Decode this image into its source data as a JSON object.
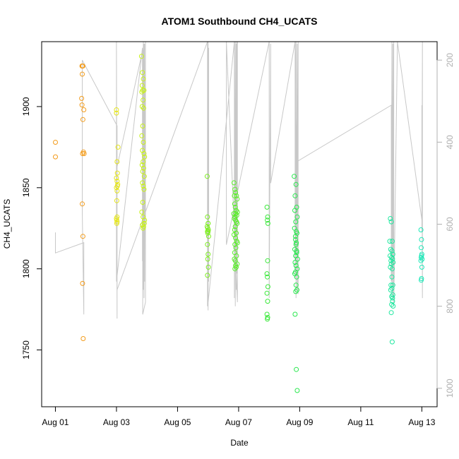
{
  "chart_data": {
    "type": "scatter",
    "title": "ATOM1 Southbound CH4_UCATS",
    "xlabel": "Date",
    "ylabel": "CH4_UCATS",
    "x_unit": "days since Aug 01",
    "x_ticks": [
      {
        "x": 0,
        "label": "Aug 01"
      },
      {
        "x": 2,
        "label": "Aug 03"
      },
      {
        "x": 4,
        "label": "Aug 05"
      },
      {
        "x": 6,
        "label": "Aug 07"
      },
      {
        "x": 8,
        "label": "Aug 09"
      },
      {
        "x": 10,
        "label": "Aug 11"
      },
      {
        "x": 12,
        "label": "Aug 13"
      }
    ],
    "xlim": [
      -0.45,
      12.5
    ],
    "y_ticks": [
      1750,
      1800,
      1850,
      1900
    ],
    "ylim": [
      1715,
      1940
    ],
    "y2_label": "",
    "y2_ticks": [
      200,
      400,
      600,
      800,
      1000
    ],
    "y2lim": [
      1045,
      155
    ],
    "y2_color": "#b0b0b0",
    "grid": false,
    "legend": "none",
    "series": [
      {
        "color": "#f39c1c",
        "x": [
          0.0,
          0.0,
          0.87,
          0.9,
          0.88,
          0.86,
          0.87,
          0.93,
          0.9,
          0.92,
          0.89,
          0.94,
          0.88,
          0.9,
          0.89,
          0.91,
          0.88
        ],
        "y": [
          1878,
          1869,
          1925,
          1925,
          1920,
          1905,
          1901,
          1898,
          1892,
          1872,
          1871,
          1871,
          1840,
          1820,
          1791,
          1757,
          1925
        ]
      },
      {
        "color": "#e6e61a",
        "x": [
          2.0,
          2.0,
          2.05,
          2.02,
          2.03,
          2.0,
          2.02,
          2.04,
          2.03,
          2.0,
          2.02,
          2.01,
          2.02,
          2.0,
          2.01,
          2.02,
          2.01
        ],
        "y": [
          1898,
          1896,
          1875,
          1866,
          1859,
          1856,
          1854,
          1852,
          1851,
          1850,
          1848,
          1842,
          1832,
          1831,
          1830,
          1829,
          1828
        ]
      },
      {
        "color": "#c8f218",
        "x": [
          2.82,
          2.85,
          2.88,
          2.84,
          2.86,
          2.9,
          2.83,
          2.87,
          2.84,
          2.89,
          2.86,
          2.83,
          2.88,
          2.85,
          2.9,
          2.92,
          2.87,
          2.84,
          2.89,
          2.86,
          2.91,
          2.85,
          2.88,
          2.9,
          2.86,
          2.83,
          2.87,
          2.92,
          2.85,
          2.89,
          2.87,
          2.91
        ],
        "y": [
          1931,
          1921,
          1917,
          1913,
          1910,
          1910,
          1909,
          1904,
          1900,
          1899,
          1888,
          1882,
          1878,
          1873,
          1871,
          1869,
          1866,
          1864,
          1862,
          1860,
          1857,
          1853,
          1851,
          1849,
          1841,
          1835,
          1832,
          1830,
          1827,
          1826,
          1825,
          1828
        ]
      },
      {
        "color": "#7fef22",
        "x": [
          4.97,
          4.98,
          5.0,
          4.99,
          5.01,
          4.98,
          5.0,
          4.99,
          5.02,
          4.98,
          5.0,
          4.99,
          5.01,
          4.98,
          5.0,
          4.97
        ],
        "y": [
          1857,
          1832,
          1828,
          1825,
          1824,
          1823,
          1823,
          1822,
          1820,
          1815,
          1809,
          1806,
          1801,
          1796,
          1828,
          1826
        ]
      },
      {
        "color": "#5aef2a",
        "x": [
          5.85,
          5.88,
          5.9,
          5.86,
          5.93,
          5.95,
          5.87,
          5.89,
          5.92,
          5.96,
          5.84,
          5.91,
          5.94,
          5.88,
          5.86,
          5.9,
          5.93,
          5.95,
          5.89,
          5.87,
          5.92,
          5.85,
          5.9,
          5.94,
          5.96,
          5.88,
          5.91,
          5.87,
          5.93,
          5.86,
          5.89,
          5.95,
          5.9,
          5.92,
          5.88
        ],
        "y": [
          1853,
          1849,
          1847,
          1845,
          1845,
          1843,
          1840,
          1838,
          1836,
          1835,
          1834,
          1834,
          1833,
          1832,
          1831,
          1830,
          1829,
          1828,
          1826,
          1824,
          1822,
          1821,
          1819,
          1817,
          1816,
          1815,
          1813,
          1810,
          1808,
          1806,
          1805,
          1803,
          1802,
          1801,
          1800
        ]
      },
      {
        "color": "#3ae83a",
        "x": [
          6.93,
          6.95,
          6.94,
          6.96,
          6.95,
          6.93,
          6.94,
          6.96,
          6.95,
          6.93,
          6.95,
          6.94,
          6.93
        ],
        "y": [
          1838,
          1832,
          1830,
          1828,
          1805,
          1797,
          1795,
          1789,
          1780,
          1772,
          1770,
          1769,
          1785
        ]
      },
      {
        "color": "#29e84e",
        "x": [
          7.82,
          7.88,
          7.85,
          7.9,
          7.84,
          7.92,
          7.87,
          7.83,
          7.91,
          7.86,
          7.89,
          7.84,
          7.9,
          7.87,
          7.93,
          7.85,
          7.88,
          7.92,
          7.86,
          7.84,
          7.9,
          7.88,
          7.91,
          7.87,
          7.85,
          7.89,
          7.92,
          7.86,
          7.88,
          7.9,
          7.87,
          7.89
        ],
        "y": [
          1857,
          1852,
          1845,
          1838,
          1836,
          1832,
          1829,
          1825,
          1822,
          1820,
          1816,
          1812,
          1810,
          1808,
          1806,
          1804,
          1802,
          1800,
          1798,
          1797,
          1795,
          1790,
          1787,
          1786,
          1772,
          1738,
          1725,
          1818,
          1815,
          1811,
          1808,
          1823
        ]
      },
      {
        "color": "#20e8a0",
        "x": [
          10.97,
          11.0,
          10.95,
          11.03,
          10.98,
          11.02,
          11.05,
          10.96,
          11.01,
          11.04,
          10.99,
          11.06,
          11.0,
          10.97,
          11.03,
          11.02,
          11.05,
          10.98,
          11.01,
          11.04,
          11.06,
          11.0,
          11.03,
          10.99,
          11.02,
          11.05,
          11.04,
          11.01
        ],
        "y": [
          1831,
          1829,
          1817,
          1817,
          1812,
          1811,
          1809,
          1808,
          1807,
          1806,
          1805,
          1804,
          1803,
          1801,
          1800,
          1795,
          1790,
          1787,
          1783,
          1780,
          1777,
          1773,
          1755,
          1790,
          1788,
          1784,
          1782,
          1778
        ]
      },
      {
        "color": "#1ce8b8",
        "x": [
          11.97,
          11.99,
          11.98,
          12.0,
          11.99,
          11.98,
          12.01,
          11.97,
          12.0,
          11.99,
          11.98
        ],
        "y": [
          1824,
          1818,
          1813,
          1809,
          1808,
          1807,
          1806,
          1805,
          1801,
          1794,
          1793
        ]
      }
    ],
    "pressure_trace": {
      "color": "#c8c8c8",
      "x": [
        0.0,
        0.0,
        0.93,
        0.93,
        0.88,
        0.88,
        2.02,
        2.02,
        2.0,
        2.0,
        2.85,
        2.85,
        2.88,
        2.88,
        2.9,
        2.9,
        2.92,
        2.92,
        2.95,
        2.95,
        2.86,
        2.86,
        2.02,
        2.02,
        4.98,
        4.98,
        5.0,
        5.0,
        5.02,
        5.02,
        4.99,
        4.99,
        5.86,
        5.86,
        5.89,
        5.89,
        5.92,
        5.92,
        5.94,
        5.94,
        5.96,
        5.96,
        5.6,
        5.6,
        7.0,
        7.0,
        7.05,
        7.05,
        7.85,
        7.85,
        7.88,
        7.88,
        7.92,
        7.92,
        7.95,
        7.95,
        7.85,
        7.85,
        11.0,
        11.0,
        11.02,
        11.02,
        11.05,
        11.05,
        11.08,
        11.08,
        11.2,
        12.0,
        12.0,
        12.02,
        12.02,
        12.0
      ],
      "y": [
        620,
        670,
        645,
        820,
        570,
        200,
        360,
        830,
        150,
        740,
        170,
        690,
        150,
        760,
        160,
        780,
        160,
        740,
        150,
        790,
        820,
        175,
        460,
        760,
        150,
        800,
        150,
        810,
        170,
        740,
        190,
        800,
        150,
        780,
        150,
        800,
        160,
        760,
        150,
        720,
        150,
        790,
        140,
        650,
        150,
        780,
        160,
        500,
        150,
        730,
        150,
        780,
        160,
        760,
        150,
        770,
        150,
        450,
        310,
        740,
        150,
        770,
        160,
        780,
        150,
        800,
        150,
        590,
        310,
        780,
        150,
        620
      ]
    }
  }
}
